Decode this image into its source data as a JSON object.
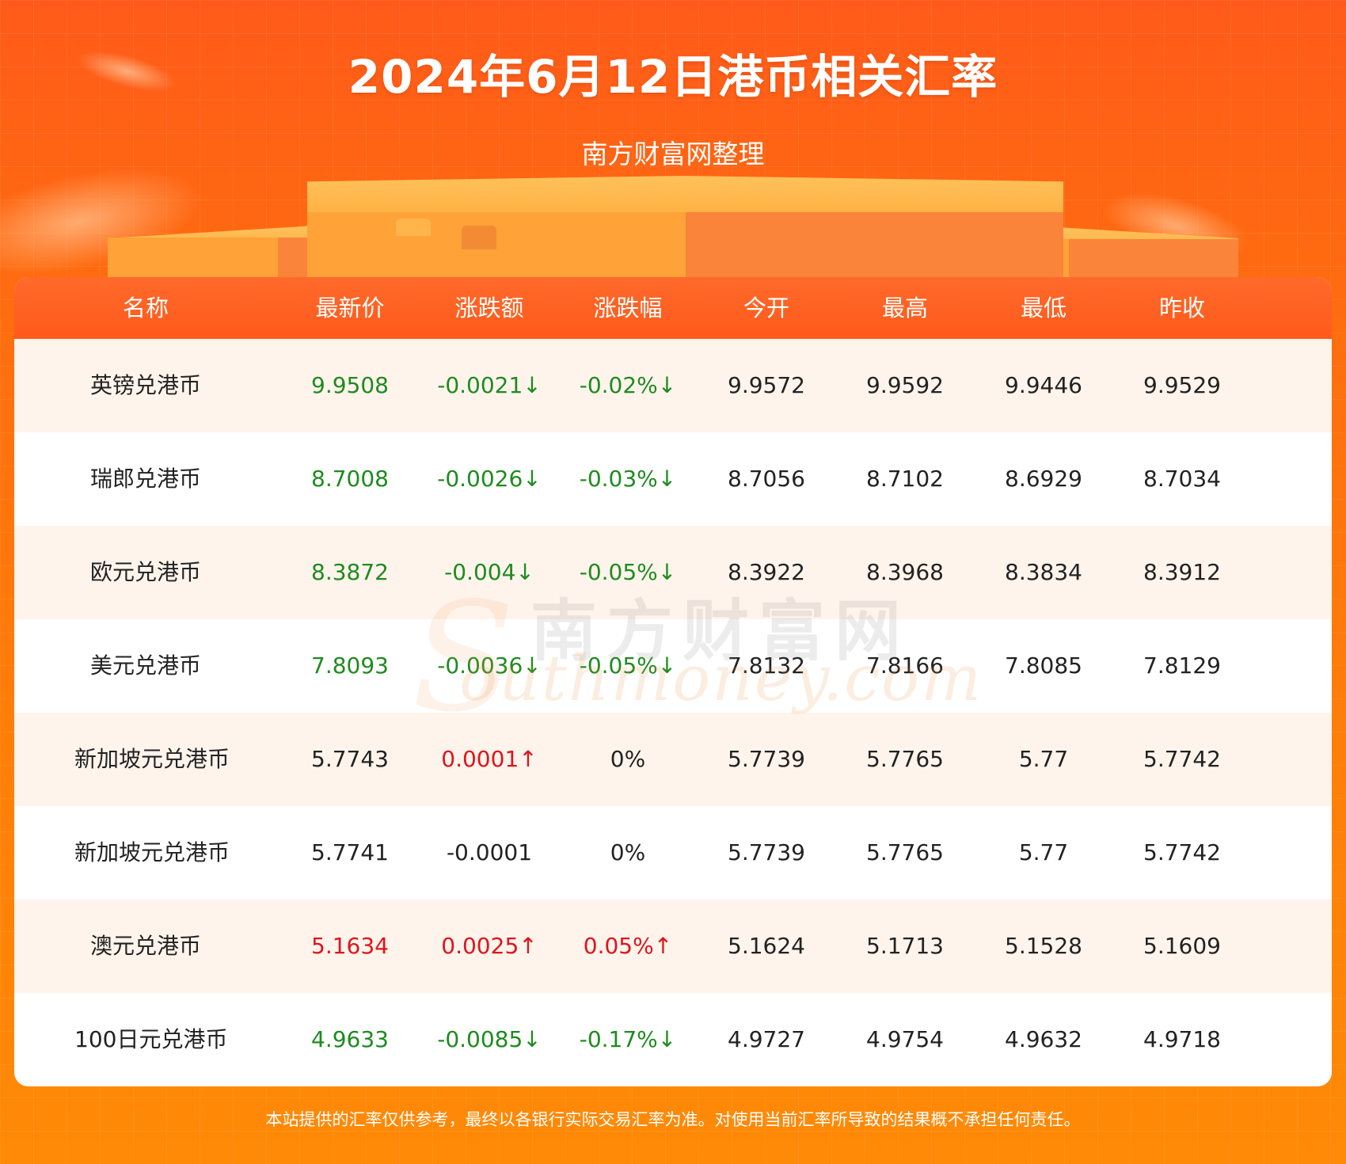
{
  "header": {
    "title": "2024年6月12日港币相关汇率",
    "subtitle": "南方财富网整理"
  },
  "table": {
    "columns": [
      "名称",
      "最新价",
      "涨跌额",
      "涨跌幅",
      "今开",
      "最高",
      "最低",
      "昨收"
    ],
    "rows": [
      {
        "name": "英镑兑港币",
        "latest": "9.9508",
        "change": "-0.0021↓",
        "pct": "-0.02%↓",
        "open": "9.9572",
        "high": "9.9592",
        "low": "9.9446",
        "prev": "9.9529",
        "latest_color": "green",
        "change_color": "green",
        "pct_color": "green"
      },
      {
        "name": "瑞郎兑港币",
        "latest": "8.7008",
        "change": "-0.0026↓",
        "pct": "-0.03%↓",
        "open": "8.7056",
        "high": "8.7102",
        "low": "8.6929",
        "prev": "8.7034",
        "latest_color": "green",
        "change_color": "green",
        "pct_color": "green"
      },
      {
        "name": "欧元兑港币",
        "latest": "8.3872",
        "change": "-0.004↓",
        "pct": "-0.05%↓",
        "open": "8.3922",
        "high": "8.3968",
        "low": "8.3834",
        "prev": "8.3912",
        "latest_color": "green",
        "change_color": "green",
        "pct_color": "green"
      },
      {
        "name": "美元兑港币",
        "latest": "7.8093",
        "change": "-0.0036↓",
        "pct": "-0.05%↓",
        "open": "7.8132",
        "high": "7.8166",
        "low": "7.8085",
        "prev": "7.8129",
        "latest_color": "green",
        "change_color": "green",
        "pct_color": "green"
      },
      {
        "name": "新加坡元兑港币",
        "latest": "5.7743",
        "change": "0.0001↑",
        "pct": "0%",
        "open": "5.7739",
        "high": "5.7765",
        "low": "5.77",
        "prev": "5.7742",
        "latest_color": "black",
        "change_color": "red",
        "pct_color": "black"
      },
      {
        "name": "新加坡元兑港币",
        "latest": "5.7741",
        "change": "-0.0001",
        "pct": "0%",
        "open": "5.7739",
        "high": "5.7765",
        "low": "5.77",
        "prev": "5.7742",
        "latest_color": "black",
        "change_color": "black",
        "pct_color": "black"
      },
      {
        "name": "澳元兑港币",
        "latest": "5.1634",
        "change": "0.0025↑",
        "pct": "0.05%↑",
        "open": "5.1624",
        "high": "5.1713",
        "low": "5.1528",
        "prev": "5.1609",
        "latest_color": "red",
        "change_color": "red",
        "pct_color": "red"
      },
      {
        "name": "100日元兑港币",
        "latest": "4.9633",
        "change": "-0.0085↓",
        "pct": "-0.17%↓",
        "open": "4.9727",
        "high": "4.9754",
        "low": "4.9632",
        "prev": "4.9718",
        "latest_color": "green",
        "change_color": "green",
        "pct_color": "green"
      }
    ]
  },
  "watermark": {
    "cn": "南方财富网",
    "en": "outhmoney.com",
    "initial": "S"
  },
  "footer": {
    "disclaimer": "本站提供的汇率仅供参考，最终以各银行实际交易汇率为准。对使用当前汇率所导致的结果概不承担任何责任。"
  },
  "colors": {
    "green": "#1f8b1f",
    "red": "#e0141b",
    "header_bg": "#ff5a1c",
    "row_alt_bg": "#fff4ec"
  }
}
